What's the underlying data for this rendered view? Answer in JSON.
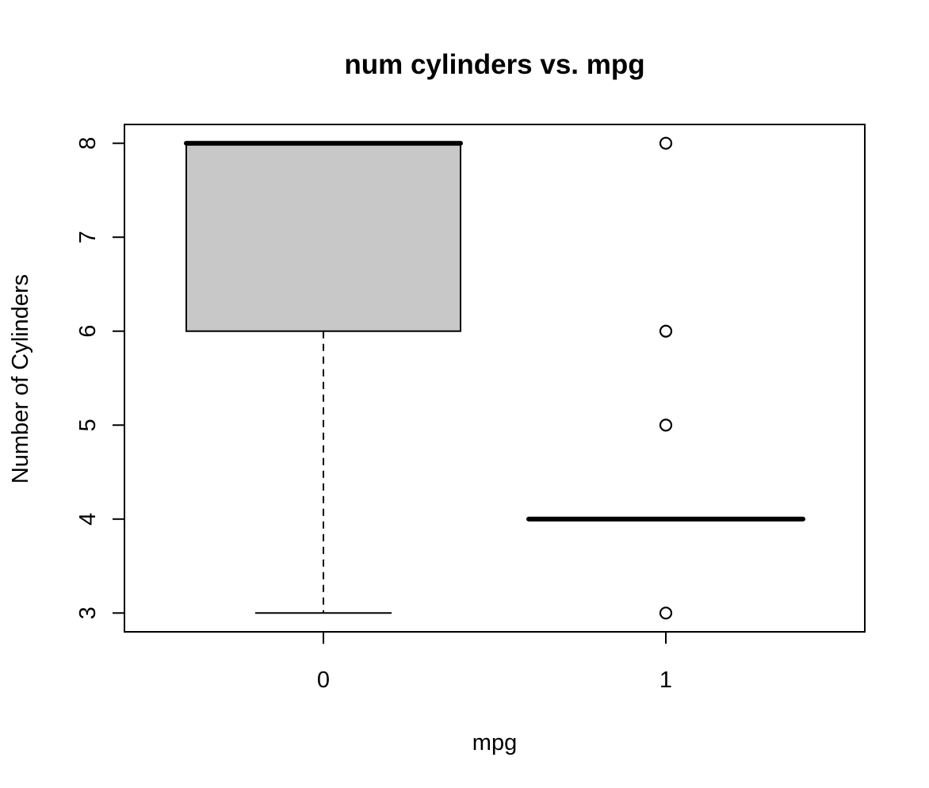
{
  "chart_data": {
    "type": "boxplot",
    "title": "num cylinders vs. mpg",
    "xlabel": "mpg",
    "ylabel": "Number of Cylinders",
    "categories": [
      "0",
      "1"
    ],
    "ylim": [
      2.8,
      8.2
    ],
    "yticks": [
      "3",
      "4",
      "5",
      "6",
      "7",
      "8"
    ],
    "boxes": [
      {
        "category": "0",
        "whisker_low": 3,
        "q1": 6,
        "median": 8,
        "q3": 8,
        "whisker_high": 8,
        "outliers": []
      },
      {
        "category": "1",
        "whisker_low": 4,
        "q1": 4,
        "median": 4,
        "q3": 4,
        "whisker_high": 4,
        "outliers": [
          3,
          5,
          6,
          8
        ]
      }
    ],
    "box_fill": "#c8c8c8",
    "grid": false,
    "legend": "none"
  }
}
